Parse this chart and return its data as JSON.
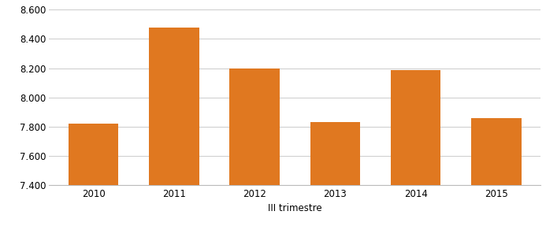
{
  "categories": [
    "2010",
    "2011",
    "2012",
    "2013",
    "2014",
    "2015"
  ],
  "values": [
    7820,
    8480,
    8200,
    7830,
    8190,
    7860
  ],
  "bar_color": "#E07820",
  "xlabel": "III trimestre",
  "ylim": [
    7400,
    8620
  ],
  "yticks": [
    7400,
    7600,
    7800,
    8000,
    8200,
    8400,
    8600
  ],
  "ytick_labels": [
    "7.400",
    "7.600",
    "7.800",
    "8.000",
    "8.200",
    "8.400",
    "8.600"
  ],
  "xlabel_fontsize": 8.5,
  "tick_fontsize": 8.5,
  "grid_color": "#d0d0d0",
  "background_color": "#ffffff",
  "fig_width": 6.93,
  "fig_height": 2.87,
  "bar_width": 0.62
}
